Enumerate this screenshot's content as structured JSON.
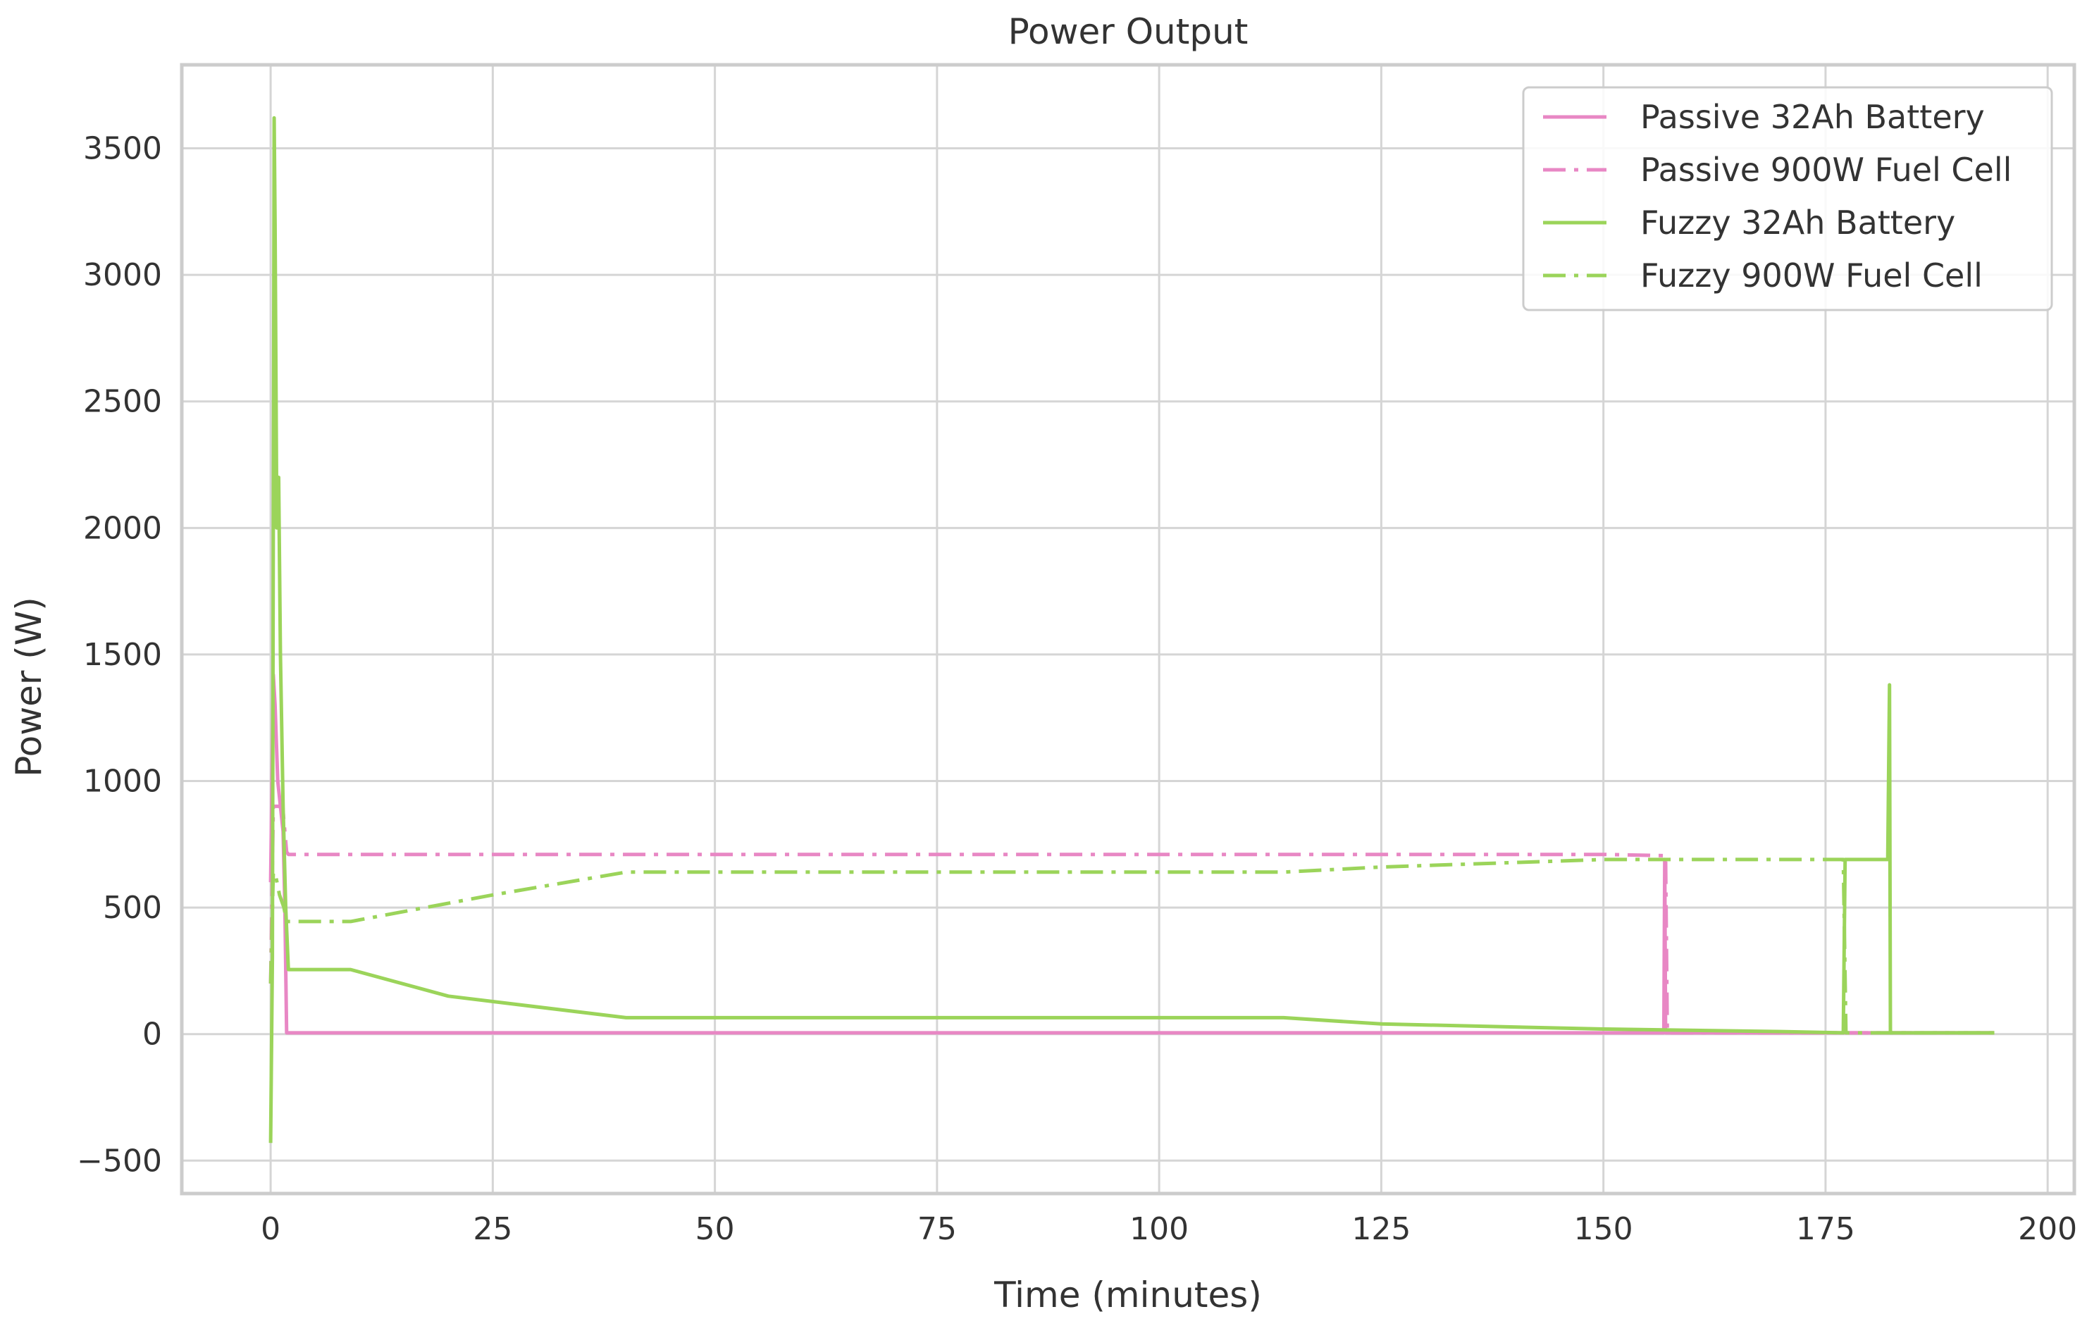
{
  "chart_data": {
    "type": "line",
    "title": "Power Output",
    "xlabel": "Time (minutes)",
    "ylabel": "Power (W)",
    "xlim": [
      -10,
      203
    ],
    "ylim": [
      -630,
      3830
    ],
    "x_ticks": [
      0,
      25,
      50,
      75,
      100,
      125,
      150,
      175,
      200
    ],
    "y_ticks": [
      -500,
      0,
      500,
      1000,
      1500,
      2000,
      2500,
      3000,
      3500
    ],
    "grid": true,
    "legend_position": "top-right",
    "series": [
      {
        "name": "Passive 32Ah Battery",
        "color": "#e887c4",
        "dash": "solid",
        "x": [
          0,
          0.3,
          0.5,
          0.8,
          1.1,
          1.4,
          1.6,
          1.8,
          40,
          100,
          150,
          156.8,
          156.9,
          157,
          160,
          194
        ],
        "y": [
          600,
          1420,
          1300,
          1000,
          900,
          800,
          500,
          5,
          5,
          5,
          5,
          5,
          690,
          5,
          5,
          5
        ]
      },
      {
        "name": "Passive 900W Fuel Cell",
        "color": "#e887c4",
        "dash": "dashdot",
        "x": [
          0,
          0.3,
          1.0,
          1.4,
          1.8,
          2.0,
          40,
          100,
          150,
          157,
          157.2,
          194
        ],
        "y": [
          200,
          900,
          900,
          880,
          720,
          710,
          710,
          710,
          710,
          705,
          5,
          5
        ]
      },
      {
        "name": "Fuzzy 32Ah Battery",
        "color": "#9bd45a",
        "dash": "solid",
        "x": [
          0,
          0.2,
          0.4,
          0.5,
          0.7,
          0.9,
          1.1,
          1.4,
          1.7,
          2,
          9,
          20,
          40,
          60,
          100,
          114,
          125,
          150,
          170,
          177,
          177.2,
          177.3,
          182,
          182.2,
          182.3,
          182.4,
          182.6,
          194
        ],
        "y": [
          -430,
          300,
          3620,
          3200,
          2000,
          2200,
          1500,
          900,
          500,
          255,
          255,
          150,
          65,
          65,
          65,
          65,
          40,
          20,
          10,
          5,
          690,
          690,
          690,
          1380,
          5,
          5,
          5,
          5
        ]
      },
      {
        "name": "Fuzzy 900W Fuel Cell",
        "color": "#9bd45a",
        "dash": "dashdot",
        "x": [
          0,
          0.3,
          0.6,
          1.0,
          1.5,
          1.8,
          9,
          25,
          40,
          75,
          100,
          114,
          125,
          150,
          177,
          177.3,
          182,
          182.3,
          194
        ],
        "y": [
          200,
          640,
          620,
          550,
          500,
          445,
          445,
          550,
          640,
          640,
          640,
          640,
          660,
          690,
          690,
          5,
          5,
          5,
          5
        ]
      }
    ]
  }
}
